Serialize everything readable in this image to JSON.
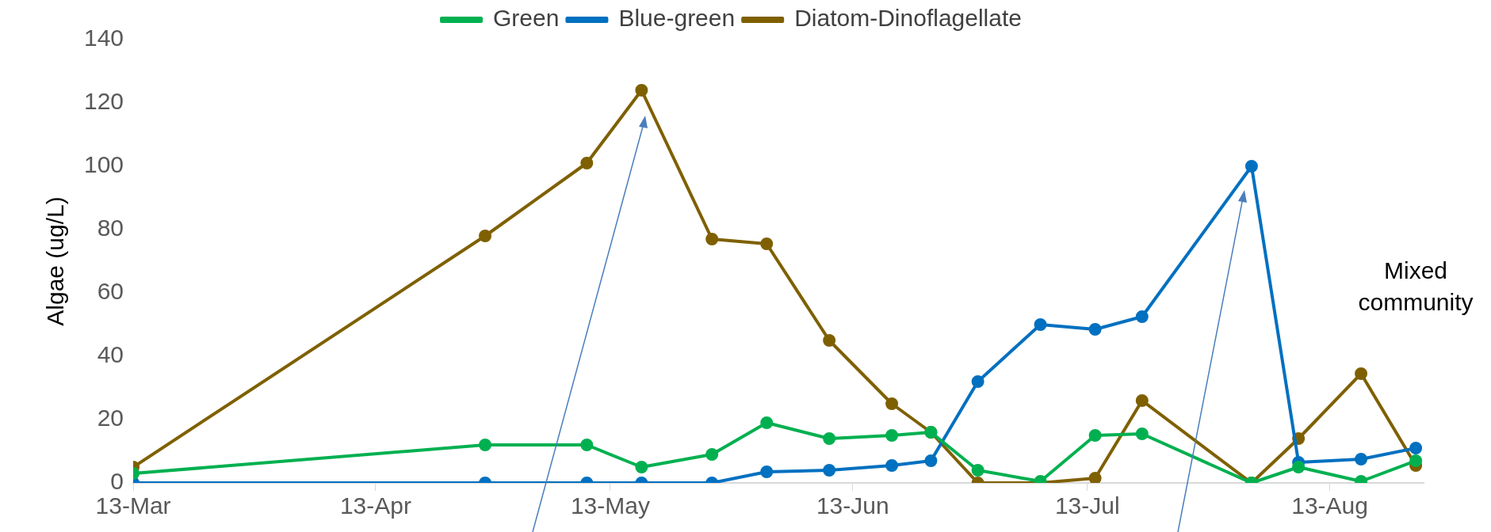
{
  "chart_data": {
    "type": "line",
    "ylabel": "Algae (ug/L)",
    "x": [
      "--03-13",
      "--04-27",
      "--05-10",
      "--05-17",
      "--05-26",
      "--06-02",
      "--06-10",
      "--06-18",
      "--06-23",
      "--06-29",
      "--07-07",
      "--07-14",
      "--07-20",
      "--08-03",
      "--08-09",
      "--08-17",
      "--08-24"
    ],
    "series": [
      {
        "name": "Green",
        "color": "#00b050",
        "values": [
          3,
          12,
          12,
          5,
          9,
          19,
          14,
          15,
          16,
          4,
          0.5,
          15,
          15.5,
          0,
          5,
          0.5,
          7
        ]
      },
      {
        "name": "Blue-green",
        "color": "#0070c0",
        "values": [
          0,
          0,
          0,
          0,
          0,
          3.5,
          4,
          5.5,
          7,
          32,
          50,
          48.5,
          52.5,
          100,
          6.5,
          7.5,
          11
        ]
      },
      {
        "name": "Diatom-Dinoflagellate",
        "color": "#7f6000",
        "values": [
          5,
          78,
          101,
          124,
          77,
          75.5,
          45,
          25,
          16,
          0,
          0,
          1.5,
          26,
          0,
          14,
          34.5,
          5.5
        ]
      }
    ],
    "xlim": [
      "--03-13",
      "--08-25"
    ],
    "xticks": [
      {
        "value": "--03-13",
        "label": "13-Mar"
      },
      {
        "value": "--04-13",
        "label": "13-Apr"
      },
      {
        "value": "--05-13",
        "label": "13-May"
      },
      {
        "value": "--06-13",
        "label": "13-Jun"
      },
      {
        "value": "--07-13",
        "label": "13-Jul"
      },
      {
        "value": "--08-13",
        "label": "13-Aug"
      }
    ],
    "ylim": [
      0,
      140
    ],
    "yticks": [
      0,
      20,
      40,
      60,
      80,
      100,
      120,
      140
    ],
    "legend": "top",
    "marker": "circle",
    "line_style": "solid",
    "annotations": [
      "Mixed community"
    ]
  }
}
